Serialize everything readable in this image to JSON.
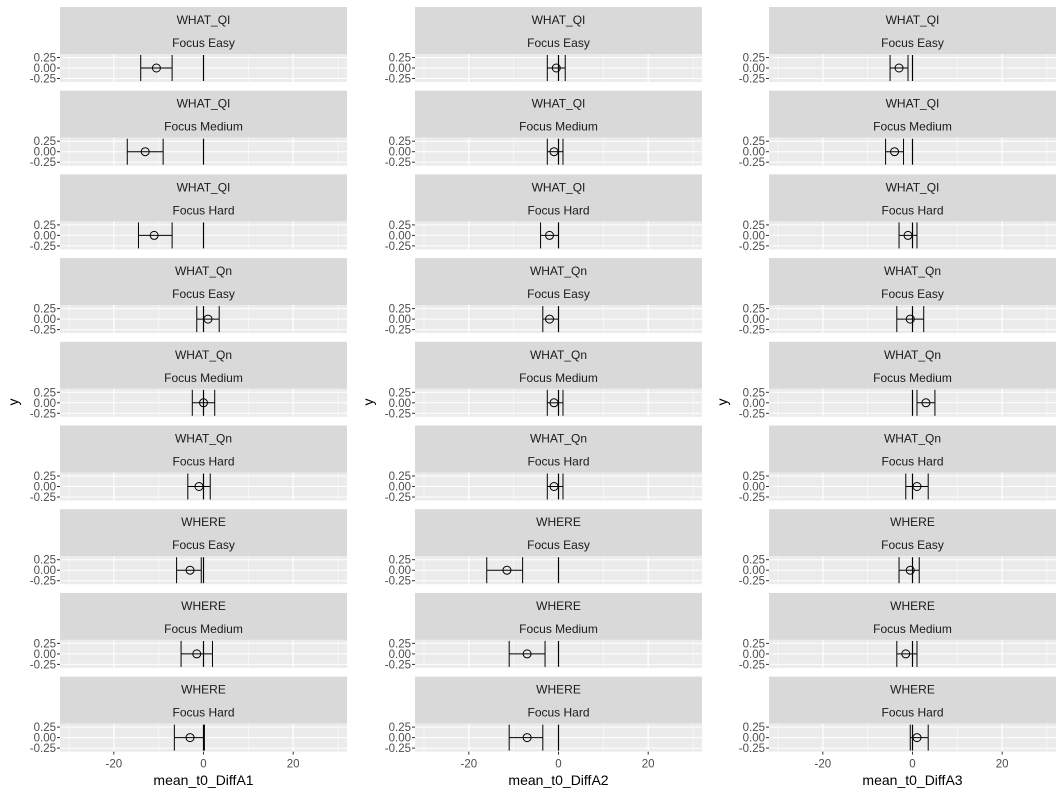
{
  "chart_data": {
    "type": "scatter",
    "subtype": "faceted-point-with-errorbars",
    "title": "",
    "ylabel": "y",
    "xlim": [
      -32,
      32
    ],
    "x_ticks": [
      -20,
      0,
      20
    ],
    "x_tick_labels": [
      "-20",
      "0",
      "20"
    ],
    "y_tick_labels": [
      "0.25",
      "0.00",
      "-0.25"
    ],
    "grid": true,
    "reference_line_x": 0,
    "row_strips": [
      [
        "WHAT_QI",
        "Focus Easy"
      ],
      [
        "WHAT_QI",
        "Focus Medium"
      ],
      [
        "WHAT_QI",
        "Focus Hard"
      ],
      [
        "WHAT_Qn",
        "Focus Easy"
      ],
      [
        "WHAT_Qn",
        "Focus Medium"
      ],
      [
        "WHAT_Qn",
        "Focus Hard"
      ],
      [
        "WHERE",
        "Focus Easy"
      ],
      [
        "WHERE",
        "Focus Medium"
      ],
      [
        "WHERE",
        "Focus Hard"
      ]
    ],
    "columns": [
      {
        "xlabel": "mean_t0_DiffA1",
        "points": [
          {
            "mean": -10.5,
            "lo": -14,
            "hi": -7
          },
          {
            "mean": -13,
            "lo": -17,
            "hi": -9
          },
          {
            "mean": -11,
            "lo": -14.5,
            "hi": -7
          },
          {
            "mean": 1,
            "lo": -1.5,
            "hi": 3.5
          },
          {
            "mean": 0,
            "lo": -2.5,
            "hi": 2.5
          },
          {
            "mean": -1,
            "lo": -3.5,
            "hi": 1.5
          },
          {
            "mean": -3,
            "lo": -6,
            "hi": -0.5
          },
          {
            "mean": -1.5,
            "lo": -5,
            "hi": 2
          },
          {
            "mean": -3,
            "lo": -6.5,
            "hi": 0.2
          }
        ]
      },
      {
        "xlabel": "mean_t0_DiffA2",
        "points": [
          {
            "mean": -0.5,
            "lo": -2.5,
            "hi": 1.5
          },
          {
            "mean": -1,
            "lo": -2.5,
            "hi": 1
          },
          {
            "mean": -2,
            "lo": -4,
            "hi": 0
          },
          {
            "mean": -2,
            "lo": -3.5,
            "hi": 0
          },
          {
            "mean": -1,
            "lo": -2.5,
            "hi": 1
          },
          {
            "mean": -1,
            "lo": -2.5,
            "hi": 1
          },
          {
            "mean": -11.5,
            "lo": -16,
            "hi": -8
          },
          {
            "mean": -7,
            "lo": -11,
            "hi": -3
          },
          {
            "mean": -7,
            "lo": -11,
            "hi": -3.5
          }
        ]
      },
      {
        "xlabel": "mean_t0_DiffA3",
        "points": [
          {
            "mean": -3,
            "lo": -5,
            "hi": -1
          },
          {
            "mean": -4,
            "lo": -6,
            "hi": -2
          },
          {
            "mean": -1,
            "lo": -3,
            "hi": 1
          },
          {
            "mean": -0.5,
            "lo": -3.5,
            "hi": 2.5
          },
          {
            "mean": 3,
            "lo": 1,
            "hi": 5
          },
          {
            "mean": 1,
            "lo": -1.5,
            "hi": 3.5
          },
          {
            "mean": -0.5,
            "lo": -3,
            "hi": 1.5
          },
          {
            "mean": -1.5,
            "lo": -3.5,
            "hi": 1
          },
          {
            "mean": 1,
            "lo": -0.5,
            "hi": 3.5
          }
        ]
      }
    ]
  }
}
